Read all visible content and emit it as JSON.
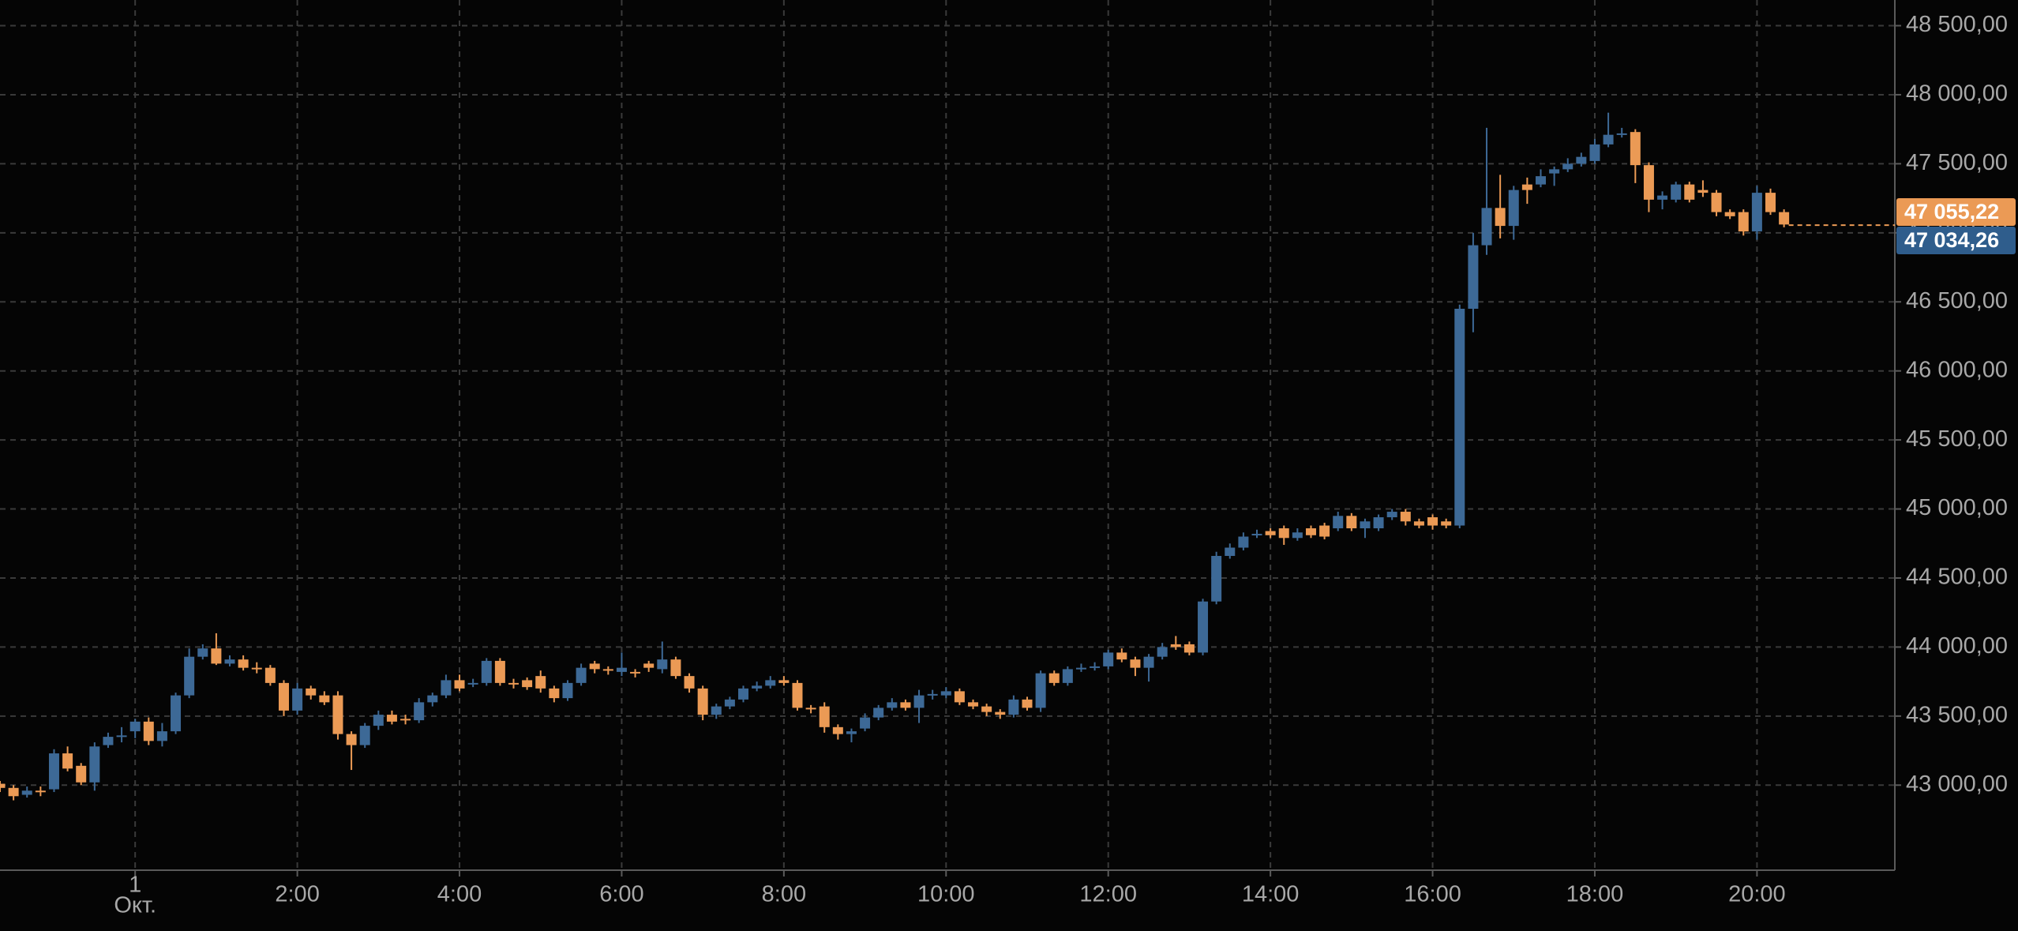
{
  "chart_data": {
    "type": "candlestick",
    "up_color": "#3d6996",
    "down_color": "#eb9a55",
    "grid": true,
    "xlim": [
      -100,
      1302
    ],
    "ylim": [
      42384,
      48686
    ],
    "xticks": [
      {
        "value": 0,
        "label": "1",
        "sublabel": "Окт."
      },
      {
        "value": 120,
        "label": "2:00"
      },
      {
        "value": 240,
        "label": "4:00"
      },
      {
        "value": 360,
        "label": "6:00"
      },
      {
        "value": 480,
        "label": "8:00"
      },
      {
        "value": 600,
        "label": "10:00"
      },
      {
        "value": 720,
        "label": "12:00"
      },
      {
        "value": 840,
        "label": "14:00"
      },
      {
        "value": 960,
        "label": "16:00"
      },
      {
        "value": 1080,
        "label": "18:00"
      },
      {
        "value": 1200,
        "label": "20:00"
      }
    ],
    "yticks": [
      {
        "value": 43000,
        "label": "43 000,00"
      },
      {
        "value": 43500,
        "label": "43 500,00"
      },
      {
        "value": 44000,
        "label": "44 000,00"
      },
      {
        "value": 44500,
        "label": "44 500,00"
      },
      {
        "value": 45000,
        "label": "45 000,00"
      },
      {
        "value": 45500,
        "label": "45 500,00"
      },
      {
        "value": 46000,
        "label": "46 000,00"
      },
      {
        "value": 46500,
        "label": "46 500,00"
      },
      {
        "value": 47000,
        "label": "47 000,00"
      },
      {
        "value": 47500,
        "label": "47 500,00"
      },
      {
        "value": 48000,
        "label": "48 000,00"
      },
      {
        "value": 48500,
        "label": "48 500,00"
      }
    ],
    "price_labels": [
      {
        "value": 47055.22,
        "label": "47 055,22",
        "color": "#eb9a55"
      },
      {
        "value": 47034.26,
        "label": "47 034,26",
        "color": "#2f5d8c"
      }
    ],
    "x": [
      -100,
      -90,
      -80,
      -70,
      -60,
      -50,
      -40,
      -30,
      -20,
      -10,
      0,
      10,
      20,
      30,
      40,
      50,
      60,
      70,
      80,
      90,
      100,
      110,
      120,
      130,
      140,
      150,
      160,
      170,
      180,
      190,
      200,
      210,
      220,
      230,
      240,
      250,
      260,
      270,
      280,
      290,
      300,
      310,
      320,
      330,
      340,
      350,
      360,
      370,
      380,
      390,
      400,
      410,
      420,
      430,
      440,
      450,
      460,
      470,
      480,
      490,
      500,
      510,
      520,
      530,
      540,
      550,
      560,
      570,
      580,
      590,
      600,
      610,
      620,
      630,
      640,
      650,
      660,
      670,
      680,
      690,
      700,
      710,
      720,
      730,
      740,
      750,
      760,
      770,
      780,
      790,
      800,
      810,
      820,
      830,
      840,
      850,
      860,
      870,
      880,
      890,
      900,
      910,
      920,
      930,
      940,
      950,
      960,
      970,
      980,
      990,
      1000,
      1010,
      1020,
      1030,
      1040,
      1050,
      1060,
      1070,
      1080,
      1090,
      1100,
      1110,
      1120,
      1130,
      1140,
      1150,
      1160,
      1170,
      1180,
      1190,
      1200,
      1210,
      1220
    ],
    "open": [
      43010,
      42980,
      42930,
      42960,
      42970,
      43230,
      43140,
      43020,
      43290,
      43350,
      43390,
      43460,
      43320,
      43390,
      43650,
      43930,
      43990,
      43880,
      43910,
      43850,
      43850,
      43740,
      43540,
      43700,
      43650,
      43650,
      43370,
      43290,
      43430,
      43510,
      43480,
      43470,
      43600,
      43650,
      43760,
      43730,
      43740,
      43900,
      43740,
      43760,
      43790,
      43700,
      43630,
      43740,
      43880,
      43840,
      43820,
      43820,
      43880,
      43840,
      43910,
      43790,
      43700,
      43510,
      43570,
      43620,
      43700,
      43720,
      43760,
      43740,
      43560,
      43570,
      43420,
      43370,
      43410,
      43490,
      43560,
      43600,
      43560,
      43650,
      43650,
      43680,
      43600,
      43570,
      43530,
      43510,
      43620,
      43560,
      43810,
      43740,
      43840,
      43850,
      43860,
      43960,
      43910,
      43850,
      43930,
      44020,
      44020,
      43960,
      44330,
      44660,
      44720,
      44810,
      44840,
      44860,
      44790,
      44860,
      44880,
      44860,
      44950,
      44860,
      44860,
      44940,
      44980,
      44910,
      44940,
      44910,
      44880,
      46450,
      46910,
      47180,
      47050,
      47350,
      47350,
      47430,
      47460,
      47500,
      47520,
      47640,
      47710,
      47730,
      47490,
      47240,
      47240,
      47350,
      47310,
      47290,
      47150,
      47150,
      47010,
      47290,
      47150
    ],
    "high": [
      43030,
      43000,
      42990,
      42990,
      43260,
      43280,
      43160,
      43310,
      43380,
      43420,
      43480,
      43490,
      43450,
      43670,
      43990,
      44020,
      44100,
      43940,
      43940,
      43890,
      43870,
      43760,
      43740,
      43720,
      43680,
      43680,
      43390,
      43450,
      43540,
      43540,
      43510,
      43630,
      43670,
      43800,
      43800,
      43770,
      43920,
      43920,
      43770,
      43780,
      43830,
      43720,
      43760,
      43880,
      43900,
      43860,
      43960,
      43840,
      43900,
      44040,
      43930,
      43810,
      43720,
      43590,
      43640,
      43720,
      43750,
      43790,
      43790,
      43760,
      43580,
      43600,
      43440,
      43410,
      43520,
      43580,
      43630,
      43620,
      43690,
      43690,
      43710,
      43700,
      43620,
      43590,
      43550,
      43650,
      43640,
      43830,
      43830,
      43860,
      43880,
      43890,
      43980,
      43990,
      43930,
      43950,
      44030,
      44080,
      44040,
      44350,
      44690,
      44750,
      44830,
      44850,
      44860,
      44880,
      44860,
      44880,
      44900,
      44980,
      44970,
      44930,
      44960,
      45000,
      45000,
      44930,
      44960,
      44930,
      46480,
      47000,
      47760,
      47420,
      47340,
      47400,
      47460,
      47480,
      47540,
      47580,
      47680,
      47870,
      47760,
      47750,
      47510,
      47300,
      47370,
      47370,
      47380,
      47310,
      47170,
      47170,
      47340,
      47320,
      47170
    ],
    "low": [
      42950,
      42890,
      42910,
      42920,
      42950,
      43100,
      43000,
      42960,
      43270,
      43310,
      43340,
      43290,
      43280,
      43370,
      43630,
      43910,
      43870,
      43860,
      43830,
      43810,
      43720,
      43500,
      43510,
      43620,
      43580,
      43330,
      43110,
      43270,
      43400,
      43440,
      43440,
      43450,
      43570,
      43630,
      43680,
      43710,
      43720,
      43720,
      43700,
      43690,
      43670,
      43600,
      43610,
      43720,
      43810,
      43800,
      43790,
      43780,
      43820,
      43810,
      43770,
      43670,
      43470,
      43480,
      43550,
      43600,
      43680,
      43700,
      43720,
      43540,
      43520,
      43380,
      43330,
      43310,
      43390,
      43470,
      43540,
      43540,
      43450,
      43620,
      43630,
      43580,
      43550,
      43500,
      43480,
      43490,
      43540,
      43530,
      43720,
      43720,
      43820,
      43830,
      43840,
      43890,
      43790,
      43750,
      43910,
      43980,
      43940,
      43940,
      44310,
      44640,
      44700,
      44790,
      44790,
      44740,
      44770,
      44790,
      44780,
      44840,
      44840,
      44790,
      44840,
      44920,
      44880,
      44860,
      44850,
      44860,
      44860,
      46280,
      46840,
      46960,
      46950,
      47210,
      47330,
      47340,
      47440,
      47480,
      47500,
      47620,
      47690,
      47360,
      47150,
      47170,
      47220,
      47220,
      47260,
      47120,
      47100,
      46980,
      46950,
      47130,
      47040
    ],
    "close": [
      42980,
      42920,
      42960,
      42950,
      43230,
      43120,
      43020,
      43280,
      43350,
      43360,
      43460,
      43320,
      43390,
      43650,
      43930,
      43990,
      43880,
      43910,
      43850,
      43840,
      43740,
      43540,
      43700,
      43650,
      43600,
      43370,
      43290,
      43430,
      43510,
      43460,
      43470,
      43600,
      43650,
      43760,
      43700,
      43740,
      43900,
      43740,
      43730,
      43710,
      43700,
      43630,
      43740,
      43850,
      43840,
      43830,
      43850,
      43810,
      43850,
      43910,
      43790,
      43700,
      43510,
      43570,
      43620,
      43700,
      43720,
      43760,
      43740,
      43560,
      43550,
      43420,
      43370,
      43390,
      43490,
      43560,
      43600,
      43560,
      43650,
      43660,
      43680,
      43600,
      43570,
      43530,
      43510,
      43620,
      43560,
      43810,
      43740,
      43840,
      43850,
      43860,
      43960,
      43910,
      43850,
      43930,
      44000,
      44000,
      43960,
      44330,
      44660,
      44720,
      44800,
      44820,
      44810,
      44790,
      44830,
      44810,
      44800,
      44950,
      44860,
      44910,
      44940,
      44980,
      44910,
      44880,
      44880,
      44880,
      46450,
      46910,
      47180,
      47050,
      47310,
      47310,
      47410,
      47460,
      47500,
      47550,
      47640,
      47710,
      47720,
      47490,
      47240,
      47270,
      47350,
      47240,
      47290,
      47150,
      47120,
      47010,
      47290,
      47150,
      47060
    ]
  }
}
